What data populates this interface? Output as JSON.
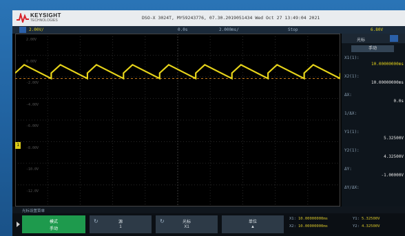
{
  "header": {
    "brand": "KEYSIGHT",
    "brand_sub": "TECHNOLOGIES",
    "model_line": "DSO-X 3024T, MY59243776, 07.30.2019051434  Wed Oct 27 13:49:04 2021"
  },
  "statusbar": {
    "ch1_scale": "2.00V/",
    "timebase_pos": "0.0s",
    "timebase_scale": "2.000ms/",
    "trigger": "Stop",
    "ch1_level": "6.80V"
  },
  "colors": {
    "ch1": "#e6d31a",
    "accent_green": "#1e9a4d",
    "screen_bg": "#050505"
  },
  "trace": {
    "waveform": "sawtooth",
    "cycles": 9,
    "level_fraction_from_top": 0.22,
    "ripple_fraction": 0.04
  },
  "grid_labels": [
    "2.00V",
    "0.00V",
    "-2.00V",
    "-4.00V",
    "-6.00V",
    "-8.00V",
    "-10.0V",
    "-12.0V"
  ],
  "right_panel": {
    "title": "光标",
    "mode_button": "手动",
    "rows": [
      {
        "key": "X1(1):",
        "value": "10.00000000ms",
        "highlight": true
      },
      {
        "key": "X2(1):",
        "value": "10.00000000ms",
        "highlight": false
      },
      {
        "key": "ΔX:",
        "value": "0.0s",
        "highlight": false
      },
      {
        "key": "1/ΔX:",
        "value": "",
        "highlight": false
      },
      {
        "key": "Y1(1):",
        "value": "5.32500V",
        "highlight": false
      },
      {
        "key": "Y2(1):",
        "value": "4.32500V",
        "highlight": false
      },
      {
        "key": "ΔY:",
        "value": "-1.00000V",
        "highlight": false
      },
      {
        "key": "ΔY/ΔX:",
        "value": "",
        "highlight": false
      }
    ]
  },
  "bottom_label": "光标设置菜单",
  "softkeys": [
    {
      "line1": "模式",
      "line2": "手动"
    },
    {
      "line1": "源",
      "line2": "1"
    },
    {
      "line1": "光标",
      "line2": "X1"
    },
    {
      "line1": "单位",
      "line2": ""
    }
  ],
  "readouts": {
    "x1_label": "X1:",
    "x1_value": "10.00000000ms",
    "x2_label": "X2:",
    "x2_value": "10.00000000ms",
    "y1_label": "Y1:",
    "y1_value": "5.32500V",
    "y2_label": "Y2:",
    "y2_value": "4.32500V"
  }
}
